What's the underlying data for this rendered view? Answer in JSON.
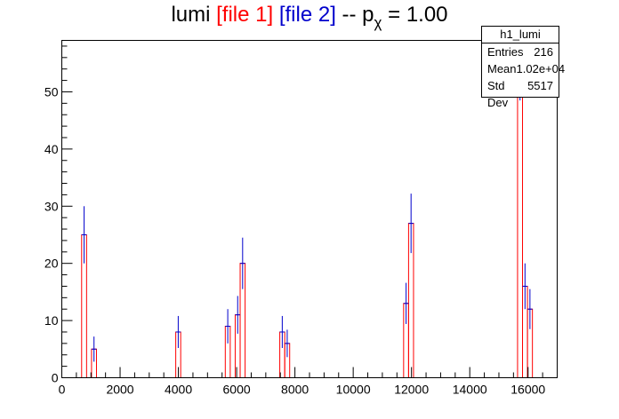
{
  "title": {
    "prefix": "lumi ",
    "file1": "[file 1]",
    "file2": "[file 2]",
    "suffix_before_sub": " -- p",
    "sub": "χ",
    "suffix_after_sub": " = 1.00"
  },
  "colors": {
    "file1": "#ff0000",
    "file2": "#0000cc",
    "axis": "#000000"
  },
  "stats": {
    "name": "h1_lumi",
    "rows": [
      {
        "label": "Entries",
        "value": "216"
      },
      {
        "label": "Mean",
        "value": "1.02e+04"
      },
      {
        "label": "Std Dev",
        "value": "5517"
      }
    ]
  },
  "chart_data": {
    "type": "bar",
    "title": "lumi [file 1] [file 2] -- pχ = 1.00",
    "xlim": [
      0,
      17000
    ],
    "ylim": [
      0,
      59
    ],
    "xticks": [
      0,
      2000,
      4000,
      6000,
      8000,
      10000,
      12000,
      14000,
      16000
    ],
    "yticks": [
      0,
      10,
      20,
      30,
      40,
      50
    ],
    "bin_width": 170,
    "series": [
      {
        "name": "[file 1]",
        "color": "#ff0000",
        "x": [
          680,
          1020,
          3910,
          5610,
          5950,
          6120,
          7480,
          7650,
          11730,
          11900,
          15640,
          15810,
          15980
        ],
        "values": [
          25,
          5,
          8,
          9,
          11,
          20,
          8,
          6,
          13,
          27,
          59,
          16,
          12
        ]
      },
      {
        "name": "[file 2]",
        "color": "#0000cc",
        "x": [
          680,
          1020,
          3910,
          5610,
          5950,
          6120,
          7480,
          7650,
          11730,
          11900,
          15640,
          15810,
          15980
        ],
        "values": [
          25,
          5,
          8,
          9,
          11,
          20,
          8,
          6,
          13,
          27,
          56,
          16,
          12
        ],
        "errors": [
          5,
          2.2,
          2.8,
          3,
          3.3,
          4.5,
          2.8,
          2.4,
          3.6,
          5.2,
          7.5,
          4,
          3.5
        ]
      }
    ]
  }
}
